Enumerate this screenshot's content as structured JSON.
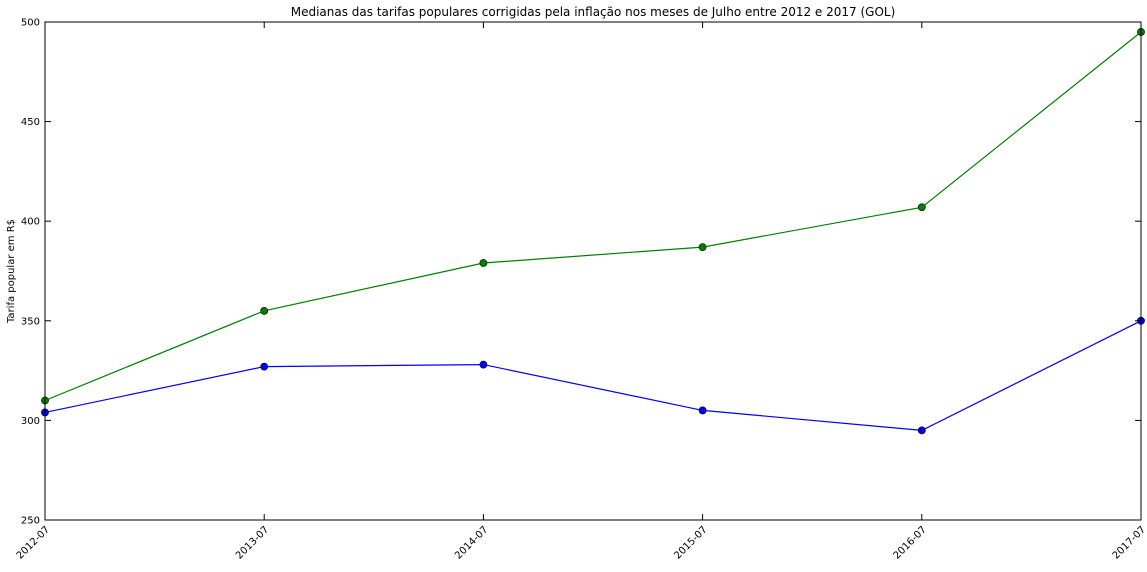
{
  "chart_data": {
    "type": "line",
    "title": "Medianas das tarifas populares corrigidas pela inflação nos meses de Julho entre 2012 e 2017 (GOL)",
    "xlabel": "",
    "ylabel": "Tarifa popular em R$",
    "categories": [
      "2012-07",
      "2013-07",
      "2014-07",
      "2015-07",
      "2016-07",
      "2017-07"
    ],
    "ylim": [
      250,
      500
    ],
    "yticks": [
      "250",
      "300",
      "350",
      "400",
      "450",
      "500"
    ],
    "grid": false,
    "legend": "none",
    "series": [
      {
        "color": "#0000ff",
        "marker": "circle",
        "values": [
          304,
          327,
          328,
          305,
          295,
          350
        ]
      },
      {
        "color": "#007f00",
        "marker": "circle",
        "values": [
          310,
          355,
          379,
          387,
          407,
          495
        ]
      }
    ]
  }
}
